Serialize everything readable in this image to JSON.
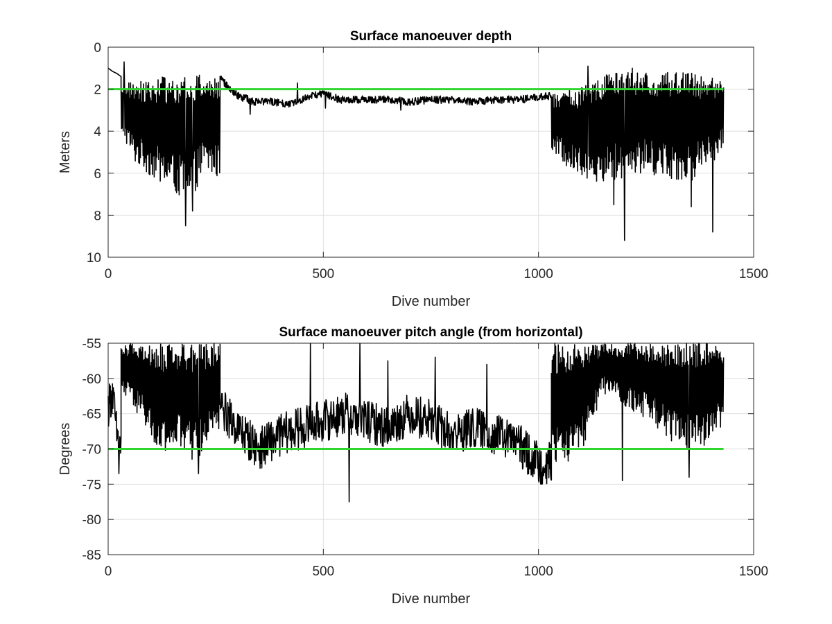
{
  "figure": {
    "background": "#ffffff"
  },
  "chart_data": [
    {
      "type": "line",
      "title": "Surface manoeuver depth",
      "xlabel": "Dive number",
      "ylabel": "Meters",
      "xlim": [
        0,
        1500
      ],
      "ylim": [
        0,
        10
      ],
      "y_reversed": true,
      "xticks": [
        0,
        500,
        1000,
        1500
      ],
      "yticks": [
        0,
        2,
        4,
        6,
        8,
        10
      ],
      "grid": true,
      "series": [
        {
          "color": "#000000",
          "segments": [
            {
              "x_start": 0,
              "x_end": 30,
              "style": "steady",
              "points": [
                [
                  0,
                  1.0
                ],
                [
                  10,
                  1.15
                ],
                [
                  20,
                  1.25
                ],
                [
                  30,
                  1.4
                ]
              ]
            },
            {
              "x_start": 30,
              "x_end": 260,
              "style": "oscillating",
              "upper": [
                [
                  30,
                  1.7
                ],
                [
                  100,
                  1.5
                ],
                [
                  200,
                  1.2
                ],
                [
                  260,
                  1.5
                ]
              ],
              "lower": [
                [
                  30,
                  4.0
                ],
                [
                  60,
                  5.5
                ],
                [
                  120,
                  6.5
                ],
                [
                  190,
                  7.5
                ],
                [
                  220,
                  6.0
                ],
                [
                  260,
                  6.3
                ]
              ],
              "spikes": [
                [
                  37,
                  0.7
                ],
                [
                  180,
                  8.5
                ],
                [
                  196,
                  7.8
                ]
              ]
            },
            {
              "x_start": 260,
              "x_end": 1030,
              "style": "noisy",
              "points": [
                [
                  260,
                  1.5
                ],
                [
                  280,
                  1.9
                ],
                [
                  300,
                  2.3
                ],
                [
                  340,
                  2.6
                ],
                [
                  380,
                  2.6
                ],
                [
                  420,
                  2.7
                ],
                [
                  460,
                  2.4
                ],
                [
                  500,
                  2.2
                ],
                [
                  540,
                  2.5
                ],
                [
                  600,
                  2.5
                ],
                [
                  650,
                  2.5
                ],
                [
                  700,
                  2.6
                ],
                [
                  750,
                  2.5
                ],
                [
                  800,
                  2.5
                ],
                [
                  850,
                  2.6
                ],
                [
                  900,
                  2.5
                ],
                [
                  950,
                  2.5
                ],
                [
                  1000,
                  2.4
                ],
                [
                  1030,
                  2.3
                ]
              ],
              "spikes": [
                [
                  330,
                  3.2
                ],
                [
                  440,
                  1.7
                ],
                [
                  505,
                  2.9
                ],
                [
                  680,
                  3.0
                ]
              ]
            },
            {
              "x_start": 1030,
              "x_end": 1430,
              "style": "oscillating",
              "upper": [
                [
                  1030,
                  2.2
                ],
                [
                  1100,
                  1.9
                ],
                [
                  1150,
                  1.2
                ],
                [
                  1250,
                  1.2
                ],
                [
                  1350,
                  1.2
                ],
                [
                  1430,
                  1.6
                ]
              ],
              "lower": [
                [
                  1030,
                  5.0
                ],
                [
                  1080,
                  6.0
                ],
                [
                  1150,
                  6.5
                ],
                [
                  1250,
                  6.0
                ],
                [
                  1350,
                  6.5
                ],
                [
                  1430,
                  5.0
                ]
              ],
              "spikes": [
                [
                  1115,
                  0.9
                ],
                [
                  1200,
                  9.2
                ],
                [
                  1175,
                  7.5
                ],
                [
                  1355,
                  7.6
                ],
                [
                  1405,
                  8.8
                ],
                [
                  1218,
                  1.0
                ]
              ]
            }
          ]
        },
        {
          "color": "#2ed62e",
          "type": "reference",
          "points": [
            [
              0,
              2
            ],
            [
              1430,
              2
            ]
          ]
        }
      ]
    },
    {
      "type": "line",
      "title": "Surface manoeuver pitch angle (from horizontal)",
      "xlabel": "Dive number",
      "ylabel": "Degrees",
      "xlim": [
        0,
        1500
      ],
      "ylim": [
        -85,
        -55
      ],
      "xticks": [
        0,
        500,
        1000,
        1500
      ],
      "yticks": [
        -55,
        -60,
        -65,
        -70,
        -75,
        -80,
        -85
      ],
      "grid": true,
      "series": [
        {
          "color": "#000000",
          "segments": [
            {
              "x_start": 0,
              "x_end": 30,
              "style": "noisy",
              "points": [
                [
                  0,
                  -64
                ],
                [
                  10,
                  -62
                ],
                [
                  20,
                  -68
                ],
                [
                  30,
                  -70
                ]
              ],
              "spikes": [
                [
                  25,
                  -73.5
                ]
              ]
            },
            {
              "x_start": 30,
              "x_end": 260,
              "style": "oscillating",
              "upper": [
                [
                  30,
                  -55
                ],
                [
                  260,
                  -55
                ]
              ],
              "lower": [
                [
                  30,
                  -62
                ],
                [
                  80,
                  -66
                ],
                [
                  120,
                  -72
                ],
                [
                  160,
                  -70
                ],
                [
                  200,
                  -72
                ],
                [
                  260,
                  -68
                ]
              ],
              "spikes": [
                [
                  210,
                  -73.5
                ]
              ]
            },
            {
              "x_start": 260,
              "x_end": 1030,
              "style": "noisy",
              "points": [
                [
                  260,
                  -64
                ],
                [
                  300,
                  -67
                ],
                [
                  350,
                  -70
                ],
                [
                  400,
                  -68
                ],
                [
                  450,
                  -67
                ],
                [
                  500,
                  -66
                ],
                [
                  550,
                  -65
                ],
                [
                  600,
                  -66
                ],
                [
                  650,
                  -67
                ],
                [
                  700,
                  -65
                ],
                [
                  750,
                  -66
                ],
                [
                  800,
                  -68
                ],
                [
                  850,
                  -67
                ],
                [
                  900,
                  -68
                ],
                [
                  950,
                  -69
                ],
                [
                  980,
                  -71
                ],
                [
                  1000,
                  -72
                ],
                [
                  1030,
                  -72
                ]
              ],
              "spikes": [
                [
                  470,
                  -55
                ],
                [
                  560,
                  -77.5
                ],
                [
                  585,
                  -55
                ],
                [
                  760,
                  -57
                ],
                [
                  650,
                  -57.5
                ],
                [
                  880,
                  -58
                ]
              ]
            },
            {
              "x_start": 1030,
              "x_end": 1430,
              "style": "oscillating",
              "upper": [
                [
                  1030,
                  -55
                ],
                [
                  1430,
                  -55
                ]
              ],
              "lower": [
                [
                  1030,
                  -73
                ],
                [
                  1100,
                  -71
                ],
                [
                  1150,
                  -62
                ],
                [
                  1200,
                  -64
                ],
                [
                  1260,
                  -66
                ],
                [
                  1320,
                  -70
                ],
                [
                  1380,
                  -70
                ],
                [
                  1430,
                  -67
                ]
              ],
              "spikes": [
                [
                  1195,
                  -74.5
                ],
                [
                  1350,
                  -74
                ]
              ]
            }
          ]
        },
        {
          "color": "#2ed62e",
          "type": "reference",
          "points": [
            [
              0,
              -70
            ],
            [
              1430,
              -70
            ]
          ]
        }
      ]
    }
  ]
}
